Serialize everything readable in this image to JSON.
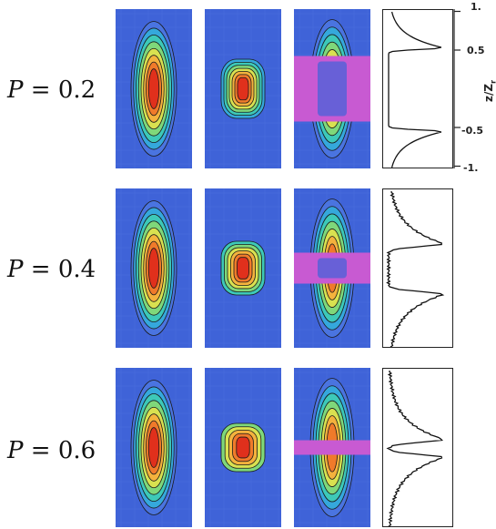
{
  "row_labels": [
    {
      "var": "P",
      "rest": " = 0.2"
    },
    {
      "var": "P",
      "rest": " = 0.4"
    },
    {
      "var": "P",
      "rest": " = 0.6"
    }
  ],
  "axis": {
    "title": "z/Z",
    "title_sub": "r",
    "ticks": [
      "1.",
      "0.5",
      "-0.5",
      "-1."
    ],
    "tick_values": [
      1,
      0.5,
      -0.5,
      -1
    ]
  },
  "colors": {
    "background_blue": "#3f63d8",
    "band_magenta": "#c85ad2",
    "contour_line": "#1a1a1a",
    "levels": [
      "#4a74e0",
      "#35a8dc",
      "#3dc9b8",
      "#7fd87a",
      "#d9e150",
      "#f4b23d",
      "#f07a2a",
      "#e0301c"
    ]
  },
  "rows": [
    {
      "panels": [
        {
          "type": "column",
          "levels": 8,
          "center_level": 8
        },
        {
          "type": "core",
          "levels": 7
        },
        {
          "type": "split",
          "levels": 7,
          "band": "wide"
        }
      ],
      "profile": "sharp-peaks"
    },
    {
      "panels": [
        {
          "type": "column",
          "levels": 8,
          "center_level": 8
        },
        {
          "type": "core",
          "levels": 6
        },
        {
          "type": "split",
          "levels": 7,
          "band": "medium"
        }
      ],
      "profile": "noisy-peaks"
    },
    {
      "panels": [
        {
          "type": "column",
          "levels": 8,
          "center_level": 8
        },
        {
          "type": "core",
          "levels": 5
        },
        {
          "type": "split",
          "levels": 7,
          "band": "narrow"
        }
      ],
      "profile": "noisy-peaks-close"
    }
  ]
}
